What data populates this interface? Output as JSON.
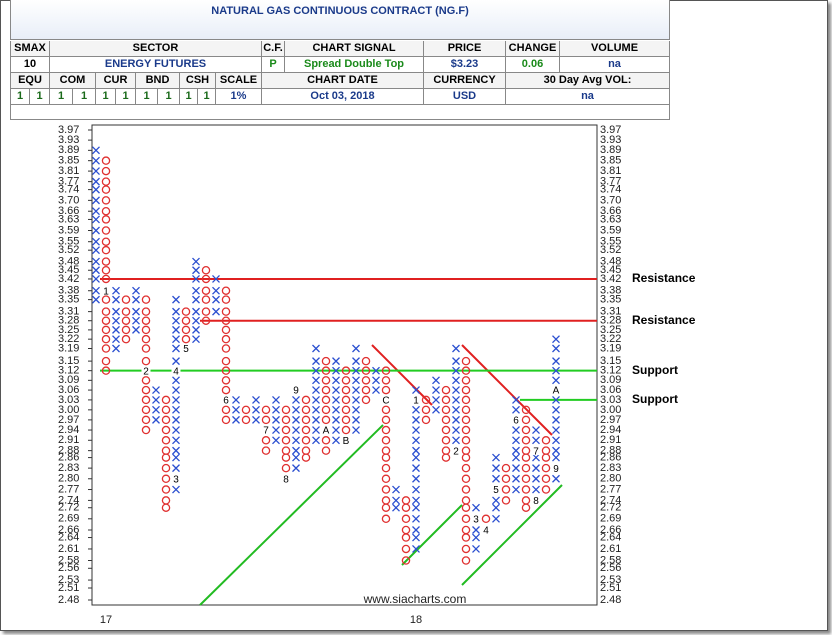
{
  "header": {
    "title": "NATURAL GAS CONTINUOUS CONTRACT (NG.F)",
    "top_labels": [
      "SMAX",
      "SECTOR",
      "C.F.",
      "CHART SIGNAL",
      "PRICE",
      "CHANGE",
      "VOLUME"
    ],
    "top_values": [
      "10",
      "ENERGY FUTURES",
      "P",
      "Spread Double Top",
      "$3.23",
      "0.06",
      "na"
    ],
    "bottom_labels": [
      "EQU",
      "COM",
      "CUR",
      "BND",
      "CSH",
      "SCALE",
      "CHART DATE",
      "CURRENCY",
      "30 Day Avg VOL:"
    ],
    "bottom_values": [
      "1",
      "1",
      "1",
      "1",
      "1",
      "1",
      "1",
      "1",
      "1",
      "1",
      "1%",
      "Oct 03, 2018",
      "USD",
      "na"
    ]
  },
  "chart_data": {
    "type": "point-and-figure",
    "log_scale": true,
    "watermark": "www.siacharts.com",
    "ylim": [
      2.48,
      3.97
    ],
    "yticks": [
      3.97,
      3.93,
      3.89,
      3.85,
      3.81,
      3.77,
      3.74,
      {
        "value": 3.7,
        "label": "3.70"
      },
      3.66,
      3.63,
      3.59,
      3.55,
      3.52,
      3.48,
      3.45,
      3.42,
      3.38,
      3.35,
      3.31,
      3.28,
      3.25,
      3.22,
      3.19,
      3.15,
      3.12,
      3.09,
      3.06,
      3.03,
      {
        "value": 3,
        "label": "3.00"
      },
      2.97,
      2.94,
      2.91,
      2.88,
      2.86,
      2.83,
      {
        "value": 2.8,
        "label": "2.80"
      },
      2.77,
      2.74,
      2.72,
      2.69,
      2.66,
      2.64,
      2.61,
      2.58,
      2.56,
      2.53,
      2.51,
      2.48
    ],
    "colors": {
      "X": "#2b4fd0",
      "O": "#e03030"
    },
    "columns": [
      {
        "type": "X",
        "from": 3.35,
        "to": 3.89
      },
      {
        "type": "O",
        "from": 3.85,
        "to": 3.12
      },
      {
        "type": "X",
        "from": 3.19,
        "to": 3.38
      },
      {
        "type": "O",
        "from": 3.35,
        "to": 3.22
      },
      {
        "type": "X",
        "from": 3.25,
        "to": 3.38
      },
      {
        "type": "O",
        "from": 3.35,
        "to": 2.94
      },
      {
        "type": "X",
        "from": 2.97,
        "to": 3.06
      },
      {
        "type": "O",
        "from": 3.03,
        "to": 2.72
      },
      {
        "type": "X",
        "from": 2.77,
        "to": 3.35
      },
      {
        "type": "O",
        "from": 3.31,
        "to": 3.19
      },
      {
        "type": "X",
        "from": 3.22,
        "to": 3.48
      },
      {
        "type": "O",
        "from": 3.45,
        "to": 3.28
      },
      {
        "type": "X",
        "from": 3.31,
        "to": 3.42
      },
      {
        "type": "O",
        "from": 3.38,
        "to": 2.97
      },
      {
        "type": "X",
        "from": 2.97,
        "to": 3.03
      },
      {
        "type": "O",
        "from": 3,
        "to": 2.97
      },
      {
        "type": "X",
        "from": 2.97,
        "to": 3.03
      },
      {
        "type": "O",
        "from": 3,
        "to": 2.88
      },
      {
        "type": "X",
        "from": 2.91,
        "to": 3.03
      },
      {
        "type": "O",
        "from": 3,
        "to": 2.8
      },
      {
        "type": "X",
        "from": 2.83,
        "to": 3.06
      },
      {
        "type": "O",
        "from": 3.03,
        "to": 2.86
      },
      {
        "type": "X",
        "from": 2.91,
        "to": 3.19
      },
      {
        "type": "O",
        "from": 3.15,
        "to": 2.88
      },
      {
        "type": "X",
        "from": 2.91,
        "to": 3.15
      },
      {
        "type": "O",
        "from": 3.12,
        "to": 2.91
      },
      {
        "type": "X",
        "from": 2.94,
        "to": 3.19
      },
      {
        "type": "O",
        "from": 3.15,
        "to": 3.03
      },
      {
        "type": "X",
        "from": 3.06,
        "to": 3.12
      },
      {
        "type": "O",
        "from": 3.12,
        "to": 2.69
      },
      {
        "type": "X",
        "from": 2.72,
        "to": 2.77
      },
      {
        "type": "O",
        "from": 2.74,
        "to": 2.58
      },
      {
        "type": "X",
        "from": 2.61,
        "to": 3.06
      },
      {
        "type": "O",
        "from": 3.03,
        "to": 2.97
      },
      {
        "type": "X",
        "from": 3,
        "to": 3.09
      },
      {
        "type": "O",
        "from": 3.06,
        "to": 2.86
      },
      {
        "type": "X",
        "from": 2.88,
        "to": 3.19
      },
      {
        "type": "O",
        "from": 3.15,
        "to": 2.58
      },
      {
        "type": "X",
        "from": 2.61,
        "to": 2.72
      },
      {
        "type": "O",
        "from": 2.69,
        "to": 2.66
      },
      {
        "type": "X",
        "from": 2.69,
        "to": 2.86
      },
      {
        "type": "O",
        "from": 2.83,
        "to": 2.74
      },
      {
        "type": "X",
        "from": 2.77,
        "to": 3.03
      },
      {
        "type": "O",
        "from": 3,
        "to": 2.72
      },
      {
        "type": "X",
        "from": 2.74,
        "to": 2.94
      },
      {
        "type": "O",
        "from": 2.91,
        "to": 2.77
      },
      {
        "type": "X",
        "from": 2.8,
        "to": 3.22
      }
    ],
    "month_marks": [
      {
        "column": 1,
        "price": 3.38,
        "text": "1"
      },
      {
        "column": 5,
        "price": 3.12,
        "text": "2"
      },
      {
        "column": 8,
        "price": 2.8,
        "text": "3"
      },
      {
        "column": 8,
        "price": 3.12,
        "text": "4"
      },
      {
        "column": 9,
        "price": 3.19,
        "text": "5"
      },
      {
        "column": 13,
        "price": 3.03,
        "text": "6"
      },
      {
        "column": 17,
        "price": 2.94,
        "text": "7"
      },
      {
        "column": 19,
        "price": 2.8,
        "text": "8"
      },
      {
        "column": 20,
        "price": 3.06,
        "text": "9"
      },
      {
        "column": 23,
        "price": 2.94,
        "text": "A"
      },
      {
        "column": 25,
        "price": 2.91,
        "text": "B"
      },
      {
        "column": 29,
        "price": 3.03,
        "text": "C"
      },
      {
        "column": 32,
        "price": 3.03,
        "text": "1"
      },
      {
        "column": 36,
        "price": 2.88,
        "text": "2"
      },
      {
        "column": 38,
        "price": 2.69,
        "text": "3"
      },
      {
        "column": 39,
        "price": 2.66,
        "text": "4"
      },
      {
        "column": 40,
        "price": 2.77,
        "text": "5"
      },
      {
        "column": 42,
        "price": 2.97,
        "text": "6"
      },
      {
        "column": 44,
        "price": 2.88,
        "text": "7"
      },
      {
        "column": 44,
        "price": 2.74,
        "text": "8"
      },
      {
        "column": 46,
        "price": 2.83,
        "text": "9"
      },
      {
        "column": 46,
        "price": 3.06,
        "text": "A"
      }
    ],
    "x_labels": [
      {
        "column": 1,
        "text": "17"
      },
      {
        "column": 32,
        "text": "18"
      }
    ],
    "levels": [
      {
        "label": "Resistance",
        "value": 3.42,
        "from_column": 0,
        "color": "#e02020"
      },
      {
        "label": "Resistance",
        "value": 3.28,
        "from_column": 10,
        "color": "#e02020"
      },
      {
        "label": "Support",
        "value": 3.12,
        "from_column": 0,
        "color": "#22cc22"
      },
      {
        "label": "Support",
        "value": 3.03,
        "from_column": 42,
        "color": "#22cc22"
      }
    ]
  }
}
